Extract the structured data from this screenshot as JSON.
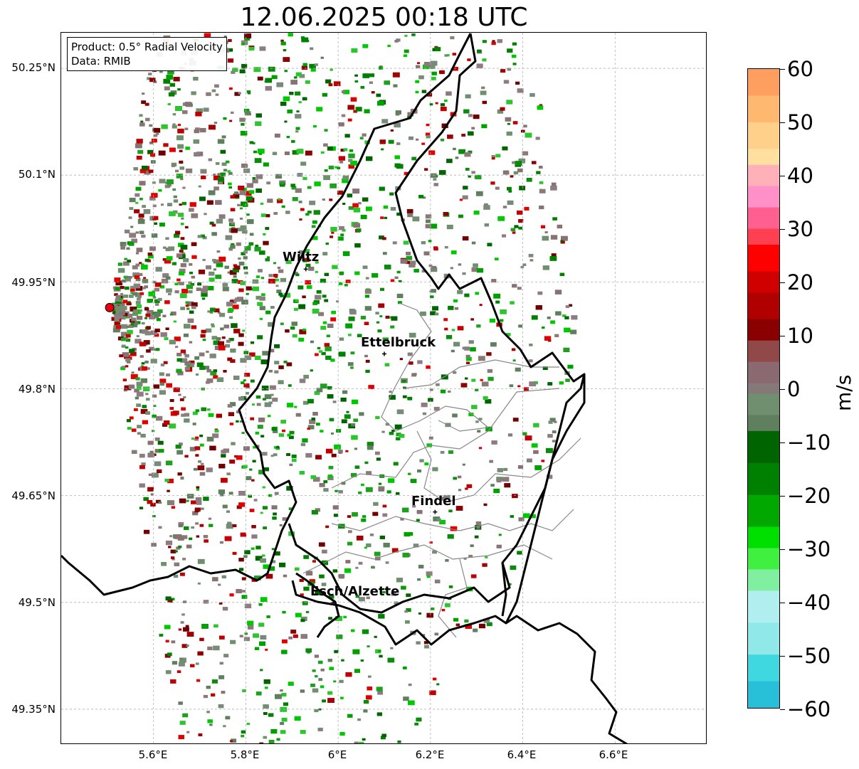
{
  "title": "12.06.2025 00:18 UTC",
  "info": {
    "product": "Product: 0.5° Radial Velocity",
    "source": "Data: RMIB"
  },
  "axes": {
    "y_labels": [
      "50.25°N",
      "50.1°N",
      "49.95°N",
      "49.8°N",
      "49.65°N",
      "49.5°N",
      "49.35°N"
    ],
    "x_labels": [
      "5.6°E",
      "5.8°E",
      "6°E",
      "6.2°E",
      "6.4°E",
      "6.6°E"
    ],
    "lat_range": [
      49.3,
      50.3
    ],
    "lon_range": [
      5.4,
      6.8
    ]
  },
  "cities": [
    {
      "name": "Wiltz",
      "lon": 5.93,
      "lat": 49.968
    },
    {
      "name": "Ettelbruck",
      "lon": 6.1,
      "lat": 49.849
    },
    {
      "name": "Findel",
      "lon": 6.21,
      "lat": 49.627
    },
    {
      "name": "Esch/Alzette",
      "lon": 5.99,
      "lat": 49.5
    }
  ],
  "radar_site": {
    "lon": 5.505,
    "lat": 49.914,
    "color": "#e8000b"
  },
  "colorbar": {
    "unit": "m/s",
    "range": [
      -60,
      60
    ],
    "ticks": [
      "60",
      "50",
      "40",
      "30",
      "20",
      "10",
      "0",
      "−10",
      "−20",
      "−30",
      "−40",
      "−50",
      "−60"
    ]
  }
}
